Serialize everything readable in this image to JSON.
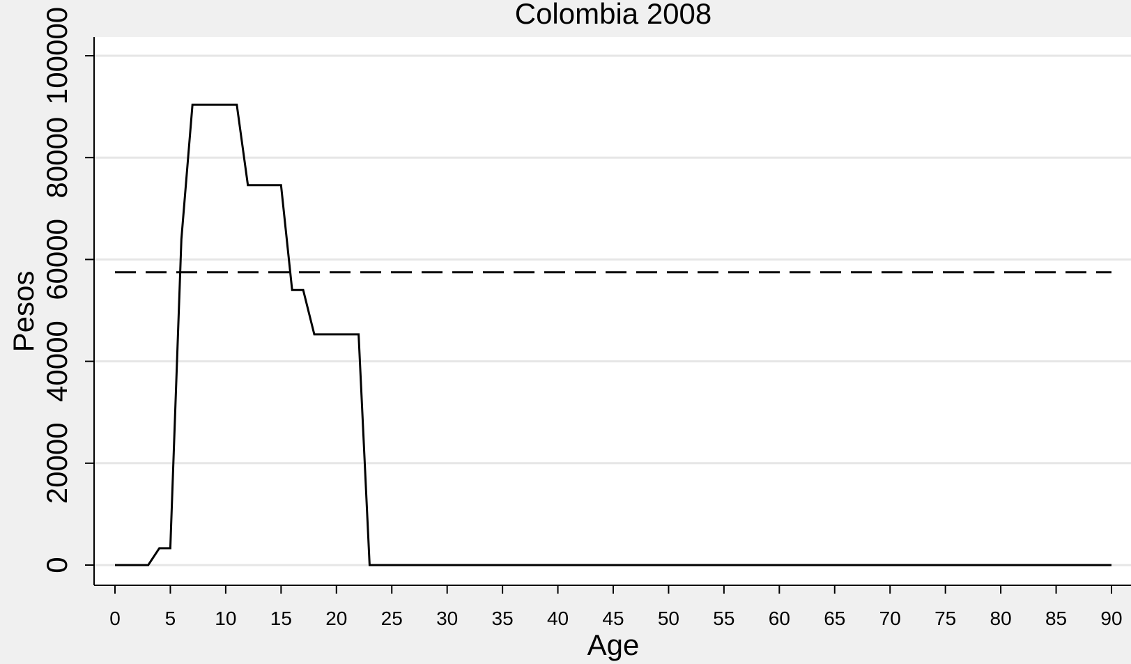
{
  "chart_data": {
    "type": "line",
    "title": "Colombia 2008",
    "xlabel": "Age",
    "ylabel": "Pesos",
    "xlim": [
      0,
      90
    ],
    "ylim": [
      0,
      100000
    ],
    "xticks": [
      0,
      5,
      10,
      15,
      20,
      25,
      30,
      35,
      40,
      45,
      50,
      55,
      60,
      65,
      70,
      75,
      80,
      85,
      90
    ],
    "xtick_labels": [
      "0",
      "5",
      "10",
      "15",
      "20",
      "25",
      "30",
      "35",
      "40",
      "45",
      "50",
      "55",
      "60",
      "65",
      "70",
      "75",
      "80",
      "85",
      "90"
    ],
    "yticks": [
      0,
      20000,
      40000,
      60000,
      80000,
      100000
    ],
    "ytick_labels": [
      "0",
      "20000",
      "40000",
      "60000",
      "80000",
      "100000"
    ],
    "grid": "horizontal",
    "legend": "none",
    "series": [
      {
        "style": "solid",
        "color": "#000000",
        "x": [
          0,
          1,
          2,
          3,
          4,
          5,
          6,
          7,
          8,
          9,
          10,
          11,
          12,
          13,
          14,
          15,
          16,
          17,
          18,
          19,
          20,
          21,
          22,
          23,
          24,
          90
        ],
        "y": [
          0,
          0,
          0,
          0,
          3300,
          3300,
          64000,
          90400,
          90400,
          90400,
          90400,
          90400,
          74600,
          74600,
          74600,
          74600,
          54000,
          54000,
          45300,
          45300,
          45300,
          45300,
          45300,
          0,
          0,
          0
        ]
      },
      {
        "style": "dashed",
        "color": "#000000",
        "x": [
          0,
          90
        ],
        "y": [
          57500,
          57500
        ]
      }
    ]
  }
}
